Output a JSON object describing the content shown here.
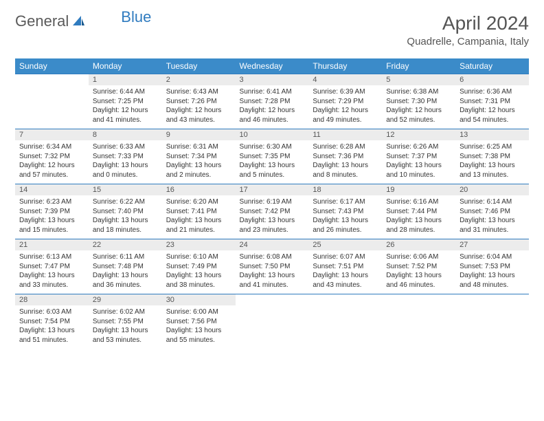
{
  "logo": {
    "text1": "General",
    "text2": "Blue"
  },
  "title": "April 2024",
  "location": "Quadrelle, Campania, Italy",
  "colors": {
    "header_bg": "#3b8bc9",
    "header_text": "#ffffff",
    "daynum_bg": "#ececec",
    "border": "#2f7bbf",
    "body_text": "#333333",
    "title_text": "#555555"
  },
  "weekdays": [
    "Sunday",
    "Monday",
    "Tuesday",
    "Wednesday",
    "Thursday",
    "Friday",
    "Saturday"
  ],
  "weeks": [
    [
      null,
      {
        "n": "1",
        "sr": "6:44 AM",
        "ss": "7:25 PM",
        "dl": "12 hours and 41 minutes."
      },
      {
        "n": "2",
        "sr": "6:43 AM",
        "ss": "7:26 PM",
        "dl": "12 hours and 43 minutes."
      },
      {
        "n": "3",
        "sr": "6:41 AM",
        "ss": "7:28 PM",
        "dl": "12 hours and 46 minutes."
      },
      {
        "n": "4",
        "sr": "6:39 AM",
        "ss": "7:29 PM",
        "dl": "12 hours and 49 minutes."
      },
      {
        "n": "5",
        "sr": "6:38 AM",
        "ss": "7:30 PM",
        "dl": "12 hours and 52 minutes."
      },
      {
        "n": "6",
        "sr": "6:36 AM",
        "ss": "7:31 PM",
        "dl": "12 hours and 54 minutes."
      }
    ],
    [
      {
        "n": "7",
        "sr": "6:34 AM",
        "ss": "7:32 PM",
        "dl": "12 hours and 57 minutes."
      },
      {
        "n": "8",
        "sr": "6:33 AM",
        "ss": "7:33 PM",
        "dl": "13 hours and 0 minutes."
      },
      {
        "n": "9",
        "sr": "6:31 AM",
        "ss": "7:34 PM",
        "dl": "13 hours and 2 minutes."
      },
      {
        "n": "10",
        "sr": "6:30 AM",
        "ss": "7:35 PM",
        "dl": "13 hours and 5 minutes."
      },
      {
        "n": "11",
        "sr": "6:28 AM",
        "ss": "7:36 PM",
        "dl": "13 hours and 8 minutes."
      },
      {
        "n": "12",
        "sr": "6:26 AM",
        "ss": "7:37 PM",
        "dl": "13 hours and 10 minutes."
      },
      {
        "n": "13",
        "sr": "6:25 AM",
        "ss": "7:38 PM",
        "dl": "13 hours and 13 minutes."
      }
    ],
    [
      {
        "n": "14",
        "sr": "6:23 AM",
        "ss": "7:39 PM",
        "dl": "13 hours and 15 minutes."
      },
      {
        "n": "15",
        "sr": "6:22 AM",
        "ss": "7:40 PM",
        "dl": "13 hours and 18 minutes."
      },
      {
        "n": "16",
        "sr": "6:20 AM",
        "ss": "7:41 PM",
        "dl": "13 hours and 21 minutes."
      },
      {
        "n": "17",
        "sr": "6:19 AM",
        "ss": "7:42 PM",
        "dl": "13 hours and 23 minutes."
      },
      {
        "n": "18",
        "sr": "6:17 AM",
        "ss": "7:43 PM",
        "dl": "13 hours and 26 minutes."
      },
      {
        "n": "19",
        "sr": "6:16 AM",
        "ss": "7:44 PM",
        "dl": "13 hours and 28 minutes."
      },
      {
        "n": "20",
        "sr": "6:14 AM",
        "ss": "7:46 PM",
        "dl": "13 hours and 31 minutes."
      }
    ],
    [
      {
        "n": "21",
        "sr": "6:13 AM",
        "ss": "7:47 PM",
        "dl": "13 hours and 33 minutes."
      },
      {
        "n": "22",
        "sr": "6:11 AM",
        "ss": "7:48 PM",
        "dl": "13 hours and 36 minutes."
      },
      {
        "n": "23",
        "sr": "6:10 AM",
        "ss": "7:49 PM",
        "dl": "13 hours and 38 minutes."
      },
      {
        "n": "24",
        "sr": "6:08 AM",
        "ss": "7:50 PM",
        "dl": "13 hours and 41 minutes."
      },
      {
        "n": "25",
        "sr": "6:07 AM",
        "ss": "7:51 PM",
        "dl": "13 hours and 43 minutes."
      },
      {
        "n": "26",
        "sr": "6:06 AM",
        "ss": "7:52 PM",
        "dl": "13 hours and 46 minutes."
      },
      {
        "n": "27",
        "sr": "6:04 AM",
        "ss": "7:53 PM",
        "dl": "13 hours and 48 minutes."
      }
    ],
    [
      {
        "n": "28",
        "sr": "6:03 AM",
        "ss": "7:54 PM",
        "dl": "13 hours and 51 minutes."
      },
      {
        "n": "29",
        "sr": "6:02 AM",
        "ss": "7:55 PM",
        "dl": "13 hours and 53 minutes."
      },
      {
        "n": "30",
        "sr": "6:00 AM",
        "ss": "7:56 PM",
        "dl": "13 hours and 55 minutes."
      },
      null,
      null,
      null,
      null
    ]
  ],
  "labels": {
    "sunrise": "Sunrise:",
    "sunset": "Sunset:",
    "daylight": "Daylight:"
  }
}
